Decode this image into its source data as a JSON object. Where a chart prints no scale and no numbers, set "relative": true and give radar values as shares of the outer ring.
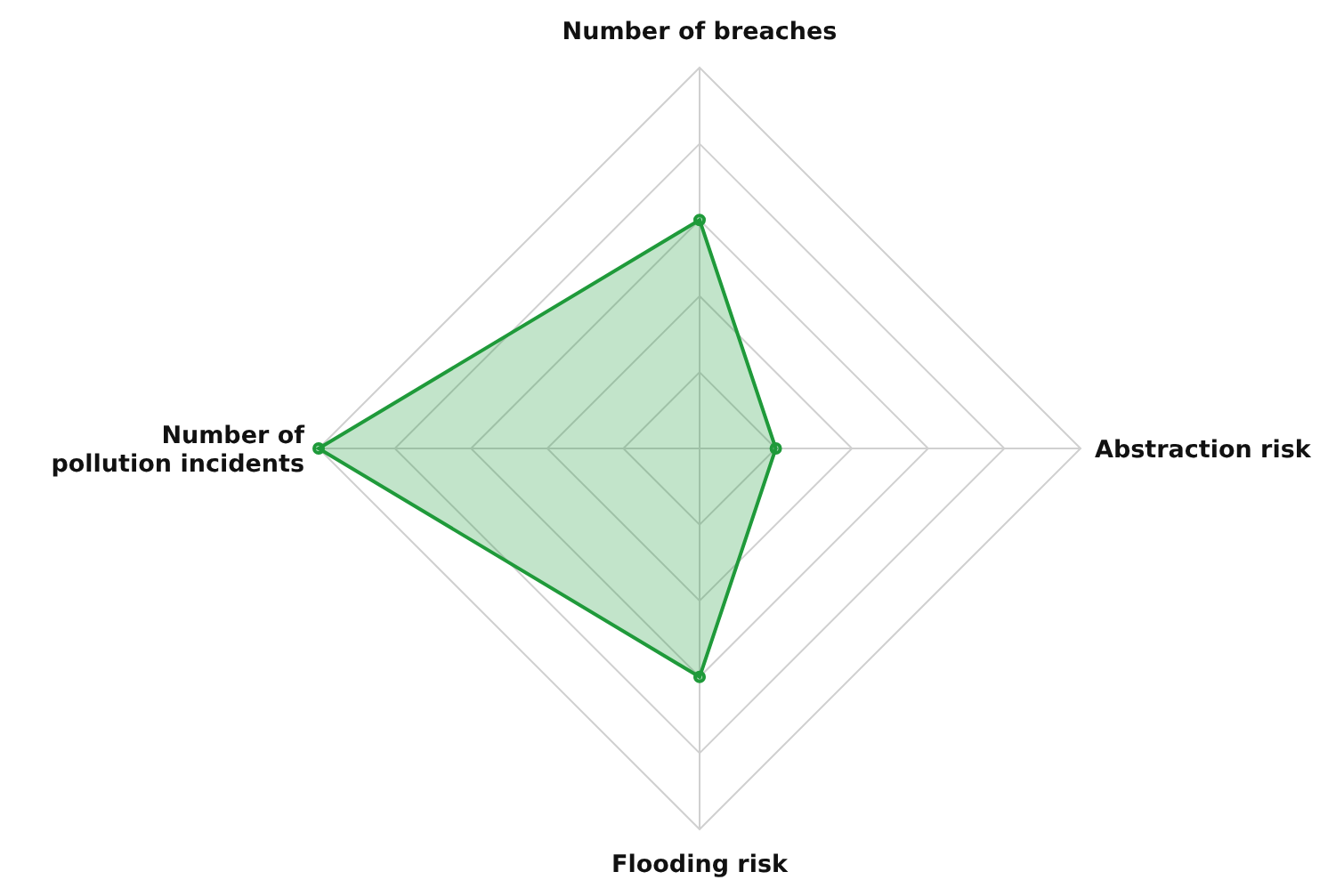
{
  "chart_data": {
    "type": "radar",
    "relative": true,
    "categories": [
      "Number of breaches",
      "Abstraction risk",
      "Flooding risk",
      "Number of\npollution incidents"
    ],
    "series": [
      {
        "color": "#1f9a3a",
        "values": [
          0.6,
          0.2,
          0.6,
          1.0
        ]
      }
    ],
    "grid": true,
    "legend": false,
    "marker": "circle"
  }
}
